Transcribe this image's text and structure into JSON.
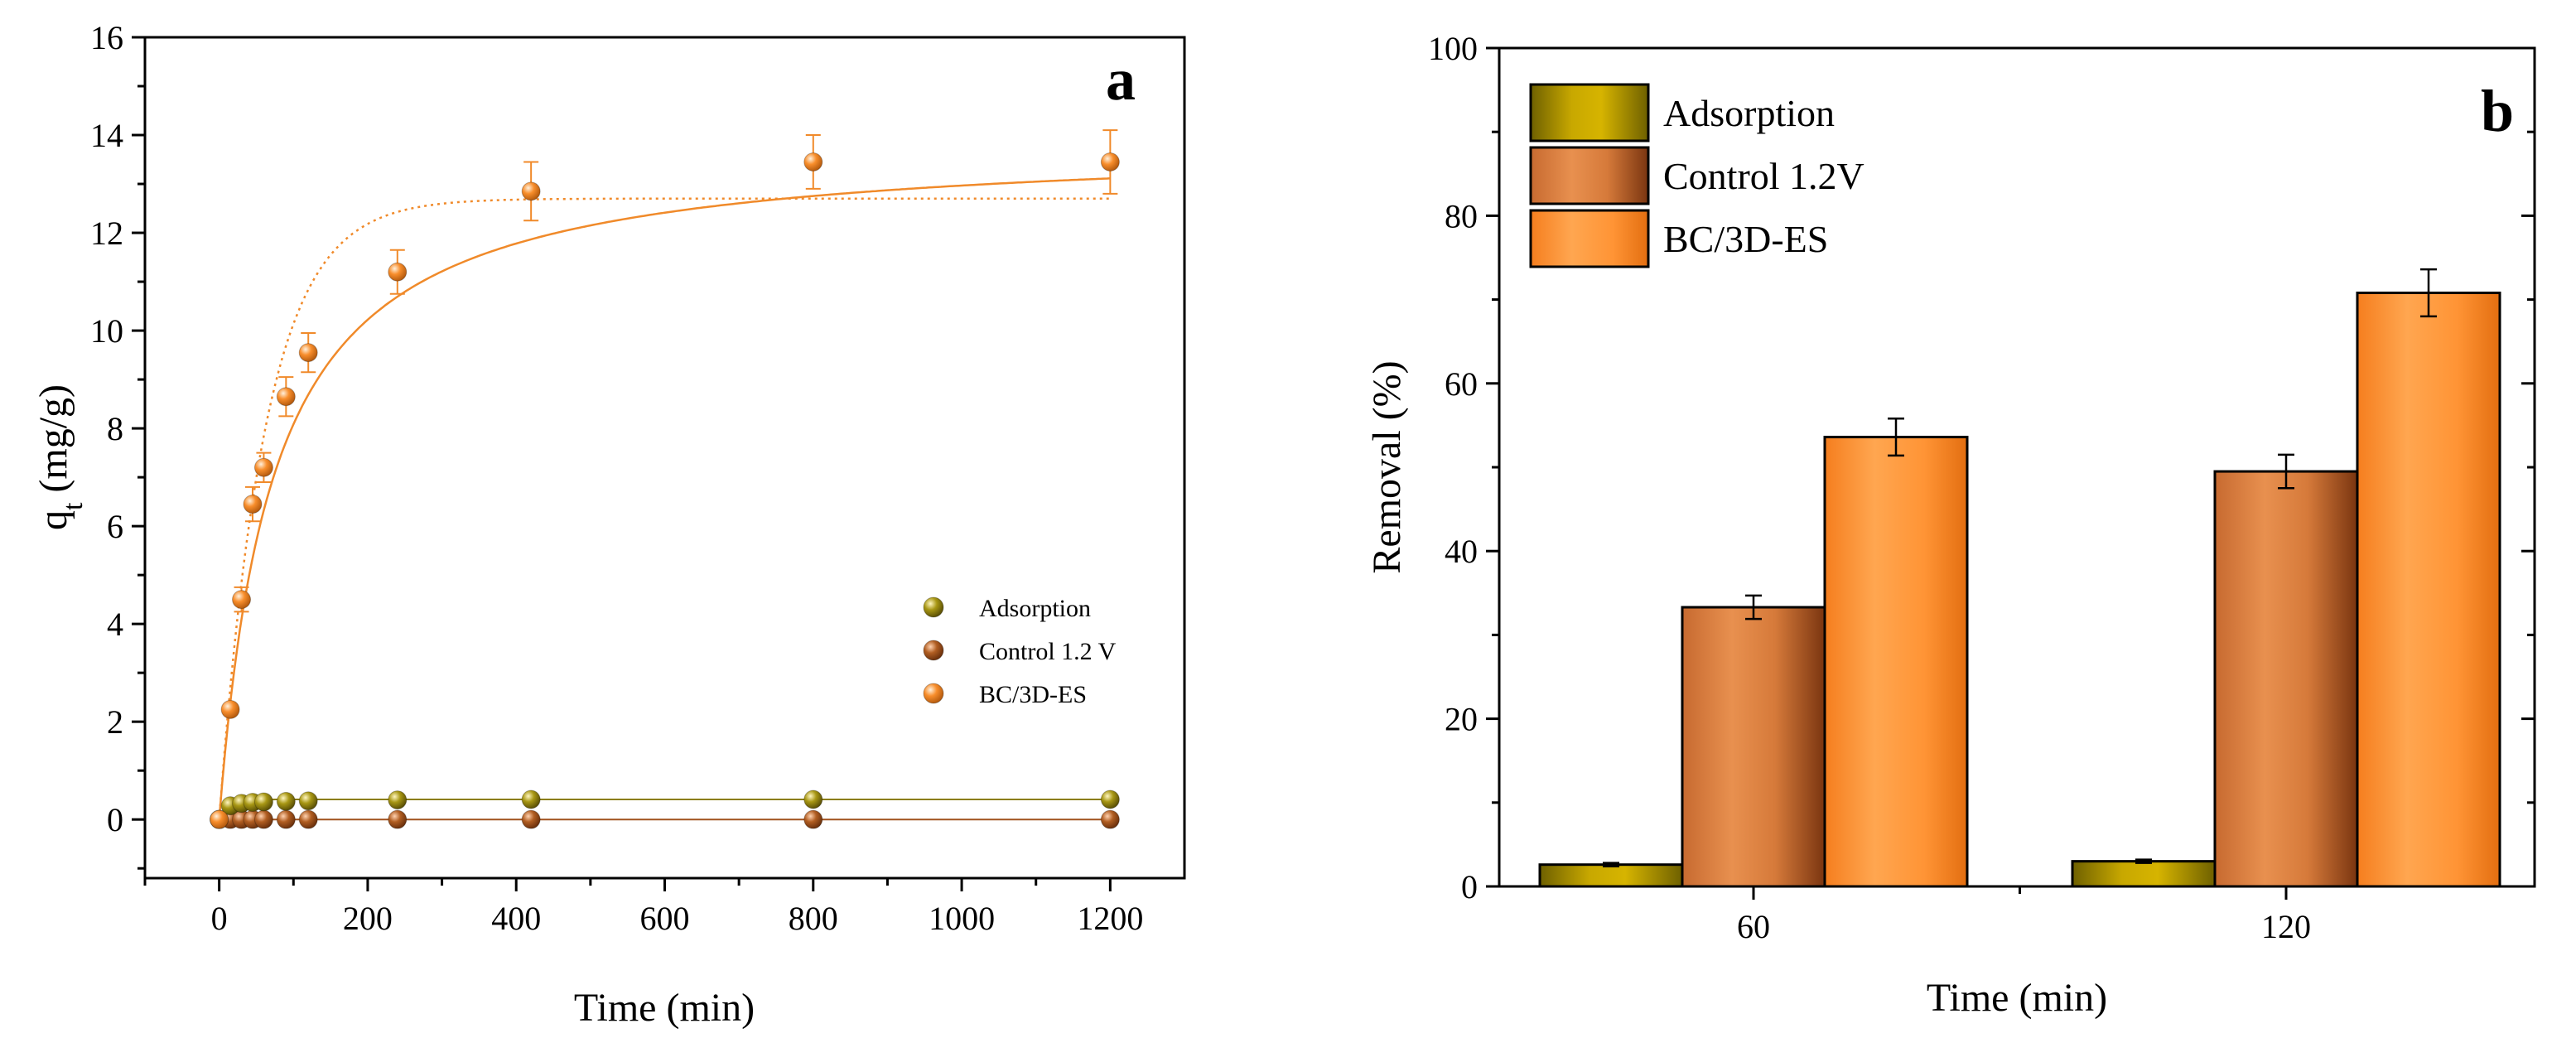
{
  "colors": {
    "adsorption": "#8B7D0A",
    "adsorption_bar": "#B39A00",
    "control": "#A0521E",
    "control_bar": "#D0743A",
    "bc3des": "#F08A2A",
    "bc3des_bar": "#FF8C28"
  },
  "chart_data": [
    {
      "panel": "a",
      "type": "scatter",
      "xlabel": "Time (min)",
      "ylabel_main": "q",
      "ylabel_sub": "t",
      "ylabel_unit": " (mg/g)",
      "xlim": [
        -100,
        1300
      ],
      "ylim": [
        -1.2,
        16
      ],
      "xticks": [
        0,
        200,
        400,
        600,
        800,
        1000,
        1200
      ],
      "yticks": [
        0,
        2,
        4,
        6,
        8,
        10,
        12,
        14,
        16
      ],
      "legend_position": "center-right",
      "grid": false,
      "series": [
        {
          "name": "Adsorption",
          "color_key": "adsorption",
          "x": [
            0,
            15,
            30,
            45,
            60,
            90,
            120,
            240,
            420,
            800,
            1200
          ],
          "y": [
            0,
            0.28,
            0.33,
            0.35,
            0.36,
            0.37,
            0.38,
            0.4,
            0.41,
            0.41,
            0.41
          ]
        },
        {
          "name": "Control 1.2 V",
          "color_key": "control",
          "x": [
            0,
            15,
            30,
            45,
            60,
            90,
            120,
            240,
            420,
            800,
            1200
          ],
          "y": [
            0,
            0,
            0,
            0,
            0,
            0,
            0,
            0,
            0,
            0,
            0
          ]
        },
        {
          "name": "BC/3D-ES",
          "color_key": "bc3des",
          "x": [
            0,
            15,
            30,
            45,
            60,
            90,
            120,
            240,
            420,
            800,
            1200
          ],
          "y": [
            0,
            2.25,
            4.5,
            6.45,
            7.2,
            8.65,
            9.55,
            11.2,
            12.85,
            13.45,
            13.45
          ],
          "err": [
            0,
            0.1,
            0.25,
            0.35,
            0.3,
            0.4,
            0.4,
            0.45,
            0.6,
            0.55,
            0.65
          ],
          "fit_solid": {
            "qe": 13.9,
            "k2": 0.001
          },
          "fit_dotted": {
            "qe": 12.7,
            "k1": 0.016
          }
        }
      ]
    },
    {
      "panel": "b",
      "type": "bar",
      "xlabel": "Time (min)",
      "ylabel": "Removal (%)",
      "ylim": [
        0,
        100
      ],
      "yticks": [
        0,
        20,
        40,
        60,
        80,
        100
      ],
      "categories": [
        "60",
        "120"
      ],
      "legend_position": "top-left",
      "grid": false,
      "series": [
        {
          "name": "Adsorption",
          "color_key": "adsorption_bar",
          "values": [
            2.6,
            3.0
          ],
          "err": [
            0.2,
            0.2
          ]
        },
        {
          "name": "Control 1.2V",
          "color_key": "control_bar",
          "values": [
            33.3,
            49.5
          ],
          "err": [
            1.4,
            2.0
          ]
        },
        {
          "name": "BC/3D-ES",
          "color_key": "bc3des_bar",
          "values": [
            53.6,
            70.8
          ],
          "err": [
            2.2,
            2.8
          ]
        }
      ]
    }
  ]
}
